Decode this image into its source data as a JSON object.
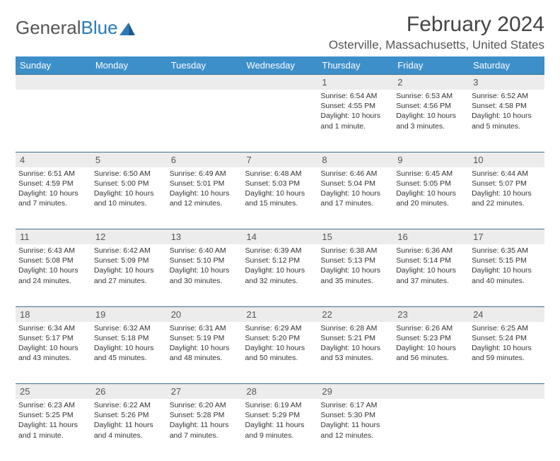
{
  "brand": {
    "word1": "General",
    "word2": "Blue"
  },
  "title": "February 2024",
  "location": "Osterville, Massachusetts, United States",
  "colors": {
    "header_bg": "#3d8fc9",
    "header_text": "#ffffff",
    "rule": "#3d6f92",
    "daynum_bg": "#ececec",
    "text": "#333333",
    "logo_gray": "#555555",
    "logo_blue": "#2a7ab8"
  },
  "weekdays": [
    "Sunday",
    "Monday",
    "Tuesday",
    "Wednesday",
    "Thursday",
    "Friday",
    "Saturday"
  ],
  "weeks": [
    {
      "nums": [
        "",
        "",
        "",
        "",
        "1",
        "2",
        "3"
      ],
      "cells": [
        null,
        null,
        null,
        null,
        {
          "sunrise": "6:54 AM",
          "sunset": "4:55 PM",
          "daylight": "10 hours and 1 minute."
        },
        {
          "sunrise": "6:53 AM",
          "sunset": "4:56 PM",
          "daylight": "10 hours and 3 minutes."
        },
        {
          "sunrise": "6:52 AM",
          "sunset": "4:58 PM",
          "daylight": "10 hours and 5 minutes."
        }
      ]
    },
    {
      "nums": [
        "4",
        "5",
        "6",
        "7",
        "8",
        "9",
        "10"
      ],
      "cells": [
        {
          "sunrise": "6:51 AM",
          "sunset": "4:59 PM",
          "daylight": "10 hours and 7 minutes."
        },
        {
          "sunrise": "6:50 AM",
          "sunset": "5:00 PM",
          "daylight": "10 hours and 10 minutes."
        },
        {
          "sunrise": "6:49 AM",
          "sunset": "5:01 PM",
          "daylight": "10 hours and 12 minutes."
        },
        {
          "sunrise": "6:48 AM",
          "sunset": "5:03 PM",
          "daylight": "10 hours and 15 minutes."
        },
        {
          "sunrise": "6:46 AM",
          "sunset": "5:04 PM",
          "daylight": "10 hours and 17 minutes."
        },
        {
          "sunrise": "6:45 AM",
          "sunset": "5:05 PM",
          "daylight": "10 hours and 20 minutes."
        },
        {
          "sunrise": "6:44 AM",
          "sunset": "5:07 PM",
          "daylight": "10 hours and 22 minutes."
        }
      ]
    },
    {
      "nums": [
        "11",
        "12",
        "13",
        "14",
        "15",
        "16",
        "17"
      ],
      "cells": [
        {
          "sunrise": "6:43 AM",
          "sunset": "5:08 PM",
          "daylight": "10 hours and 24 minutes."
        },
        {
          "sunrise": "6:42 AM",
          "sunset": "5:09 PM",
          "daylight": "10 hours and 27 minutes."
        },
        {
          "sunrise": "6:40 AM",
          "sunset": "5:10 PM",
          "daylight": "10 hours and 30 minutes."
        },
        {
          "sunrise": "6:39 AM",
          "sunset": "5:12 PM",
          "daylight": "10 hours and 32 minutes."
        },
        {
          "sunrise": "6:38 AM",
          "sunset": "5:13 PM",
          "daylight": "10 hours and 35 minutes."
        },
        {
          "sunrise": "6:36 AM",
          "sunset": "5:14 PM",
          "daylight": "10 hours and 37 minutes."
        },
        {
          "sunrise": "6:35 AM",
          "sunset": "5:15 PM",
          "daylight": "10 hours and 40 minutes."
        }
      ]
    },
    {
      "nums": [
        "18",
        "19",
        "20",
        "21",
        "22",
        "23",
        "24"
      ],
      "cells": [
        {
          "sunrise": "6:34 AM",
          "sunset": "5:17 PM",
          "daylight": "10 hours and 43 minutes."
        },
        {
          "sunrise": "6:32 AM",
          "sunset": "5:18 PM",
          "daylight": "10 hours and 45 minutes."
        },
        {
          "sunrise": "6:31 AM",
          "sunset": "5:19 PM",
          "daylight": "10 hours and 48 minutes."
        },
        {
          "sunrise": "6:29 AM",
          "sunset": "5:20 PM",
          "daylight": "10 hours and 50 minutes."
        },
        {
          "sunrise": "6:28 AM",
          "sunset": "5:21 PM",
          "daylight": "10 hours and 53 minutes."
        },
        {
          "sunrise": "6:26 AM",
          "sunset": "5:23 PM",
          "daylight": "10 hours and 56 minutes."
        },
        {
          "sunrise": "6:25 AM",
          "sunset": "5:24 PM",
          "daylight": "10 hours and 59 minutes."
        }
      ]
    },
    {
      "nums": [
        "25",
        "26",
        "27",
        "28",
        "29",
        "",
        ""
      ],
      "cells": [
        {
          "sunrise": "6:23 AM",
          "sunset": "5:25 PM",
          "daylight": "11 hours and 1 minute."
        },
        {
          "sunrise": "6:22 AM",
          "sunset": "5:26 PM",
          "daylight": "11 hours and 4 minutes."
        },
        {
          "sunrise": "6:20 AM",
          "sunset": "5:28 PM",
          "daylight": "11 hours and 7 minutes."
        },
        {
          "sunrise": "6:19 AM",
          "sunset": "5:29 PM",
          "daylight": "11 hours and 9 minutes."
        },
        {
          "sunrise": "6:17 AM",
          "sunset": "5:30 PM",
          "daylight": "11 hours and 12 minutes."
        },
        null,
        null
      ]
    }
  ],
  "labels": {
    "sunrise": "Sunrise: ",
    "sunset": "Sunset: ",
    "daylight": "Daylight: "
  }
}
